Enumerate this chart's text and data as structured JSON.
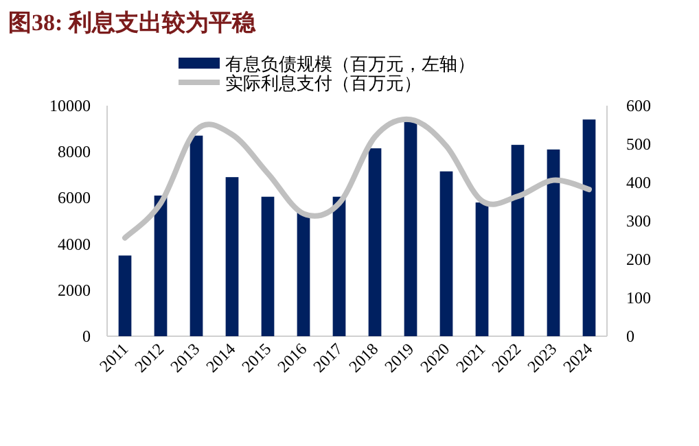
{
  "chart_data": {
    "type": "bar",
    "title": "图38:  利息支出较为平稳",
    "categories": [
      "2011",
      "2012",
      "2013",
      "2014",
      "2015",
      "2016",
      "2017",
      "2018",
      "2019",
      "2020",
      "2021",
      "2022",
      "2023",
      "2024"
    ],
    "series": [
      {
        "name": "有息负债规模（百万元，左轴）",
        "color": "#002060",
        "values": [
          3500,
          6100,
          8700,
          6900,
          6050,
          5350,
          6050,
          8150,
          9300,
          7150,
          5800,
          8300,
          8100,
          9400
        ]
      },
      {
        "name": "实际利息支付（百万元）",
        "color": "#c0c0c0",
        "type": "line",
        "axis": "y2",
        "values": [
          256,
          346,
          537,
          525,
          424,
          319,
          346,
          519,
          564,
          495,
          352,
          364,
          406,
          382
        ]
      }
    ],
    "ylim": [
      0,
      10000
    ],
    "yticks": [
      0,
      2000,
      4000,
      6000,
      8000,
      10000
    ],
    "y2lim": [
      0,
      600
    ],
    "y2ticks": [
      0,
      100,
      200,
      300,
      400,
      500,
      600
    ],
    "legend": "top"
  }
}
